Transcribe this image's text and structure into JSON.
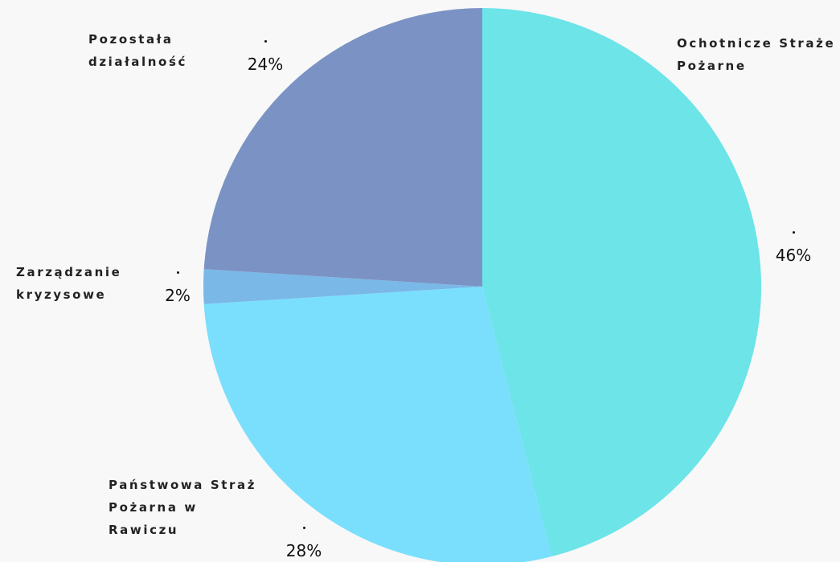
{
  "chart_data": {
    "type": "pie",
    "categories": [
      "Ochotnicze Straże Pożarne",
      "Państwowa Straż Pożarna w Rawiczu",
      "Zarządzanie kryzysowe",
      "Pozostała działalność"
    ],
    "values": [
      46,
      28,
      2,
      24
    ],
    "value_labels": [
      "46%",
      "28%",
      "2%",
      "24%"
    ],
    "colors": [
      "#6ce4e8",
      "#7adffc",
      "#7ab8e8",
      "#7b93c4"
    ]
  }
}
